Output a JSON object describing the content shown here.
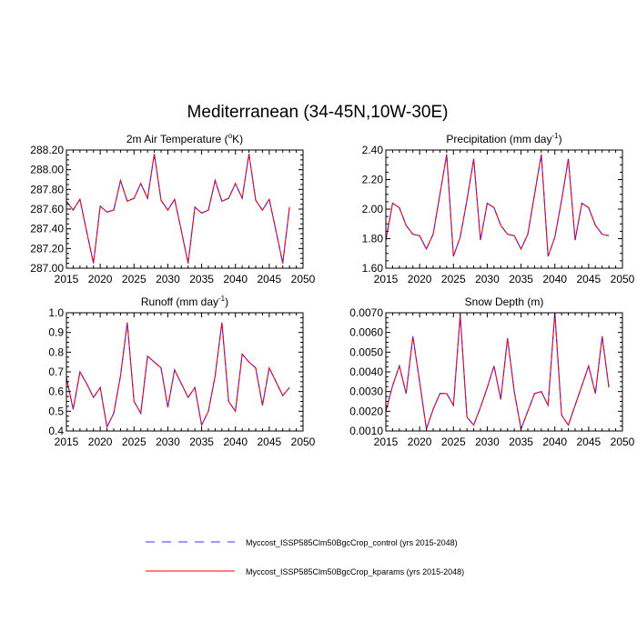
{
  "main_title": "Mediterranean (34-45N,10W-30E)",
  "colors": {
    "control": "#3333ff",
    "kparams": "#ff0000",
    "axis": "#000000"
  },
  "legend": [
    {
      "label": "Myccost_ISSP585Clm50BgcCrop_control (yrs 2015-2048)",
      "style": "dashed",
      "color": "#3333ff"
    },
    {
      "label": "Myccost_ISSP585Clm50BgcCrop_kparams (yrs 2015-2048)",
      "style": "solid",
      "color": "#ff0000"
    }
  ],
  "chart_data": [
    {
      "type": "line",
      "title": "2m Air Temperature (°K)",
      "title_base": "2m Air Temperature (",
      "title_sup": "o",
      "title_rest": "K)",
      "xlim": [
        2015,
        2050
      ],
      "xticks": [
        2015,
        2020,
        2025,
        2030,
        2035,
        2040,
        2045,
        2050
      ],
      "ylim": [
        287.0,
        288.2
      ],
      "yticks": [
        "287.00",
        "287.20",
        "287.40",
        "287.60",
        "287.80",
        "288.00",
        "288.20"
      ],
      "x": [
        2015,
        2016,
        2017,
        2018,
        2019,
        2020,
        2021,
        2022,
        2023,
        2024,
        2025,
        2026,
        2027,
        2028,
        2029,
        2030,
        2031,
        2032,
        2033,
        2034,
        2035,
        2036,
        2037,
        2038,
        2039,
        2040,
        2041,
        2042,
        2043,
        2044,
        2045,
        2046,
        2047,
        2048
      ],
      "series": [
        {
          "name": "Myccost_ISSP585Clm50BgcCrop_control",
          "values": [
            287.68,
            287.59,
            287.7,
            287.37,
            287.05,
            287.63,
            287.57,
            287.59,
            287.89,
            287.68,
            287.71,
            287.86,
            287.71,
            288.16,
            287.69,
            287.59,
            287.7,
            287.38,
            287.05,
            287.62,
            287.56,
            287.59,
            287.89,
            287.68,
            287.71,
            287.86,
            287.71,
            288.16,
            287.69,
            287.59,
            287.7,
            287.38,
            287.05,
            287.62
          ]
        },
        {
          "name": "Myccost_ISSP585Clm50BgcCrop_kparams",
          "values": [
            287.68,
            287.59,
            287.7,
            287.37,
            287.05,
            287.63,
            287.57,
            287.59,
            287.89,
            287.68,
            287.71,
            287.86,
            287.71,
            288.16,
            287.69,
            287.59,
            287.7,
            287.38,
            287.05,
            287.62,
            287.56,
            287.59,
            287.89,
            287.68,
            287.71,
            287.86,
            287.71,
            288.16,
            287.69,
            287.59,
            287.7,
            287.38,
            287.05,
            287.62
          ]
        }
      ]
    },
    {
      "type": "line",
      "title": "Precipitation (mm day-1)",
      "title_base": "Precipitation (mm day",
      "title_sup": "-1",
      "title_rest": ")",
      "xlim": [
        2015,
        2050
      ],
      "xticks": [
        2015,
        2020,
        2025,
        2030,
        2035,
        2040,
        2045,
        2050
      ],
      "ylim": [
        1.6,
        2.4
      ],
      "yticks": [
        "1.60",
        "1.80",
        "2.00",
        "2.20",
        "2.40"
      ],
      "x": [
        2015,
        2016,
        2017,
        2018,
        2019,
        2020,
        2021,
        2022,
        2023,
        2024,
        2025,
        2026,
        2027,
        2028,
        2029,
        2030,
        2031,
        2032,
        2033,
        2034,
        2035,
        2036,
        2037,
        2038,
        2039,
        2040,
        2041,
        2042,
        2043,
        2044,
        2045,
        2046,
        2047,
        2048
      ],
      "series": [
        {
          "name": "Myccost_ISSP585Clm50BgcCrop_control",
          "values": [
            1.79,
            2.04,
            2.01,
            1.89,
            1.83,
            1.82,
            1.73,
            1.83,
            2.1,
            2.37,
            1.68,
            1.81,
            2.06,
            2.34,
            1.79,
            2.04,
            2.01,
            1.89,
            1.83,
            1.82,
            1.73,
            1.83,
            2.1,
            2.37,
            1.68,
            1.81,
            2.06,
            2.34,
            1.79,
            2.04,
            2.01,
            1.89,
            1.83,
            1.82
          ]
        },
        {
          "name": "Myccost_ISSP585Clm50BgcCrop_kparams",
          "values": [
            1.79,
            2.04,
            2.01,
            1.89,
            1.83,
            1.82,
            1.73,
            1.83,
            2.1,
            2.37,
            1.68,
            1.81,
            2.06,
            2.34,
            1.79,
            2.04,
            2.01,
            1.89,
            1.83,
            1.82,
            1.73,
            1.83,
            2.1,
            2.37,
            1.68,
            1.81,
            2.06,
            2.34,
            1.79,
            2.04,
            2.01,
            1.89,
            1.83,
            1.82
          ]
        }
      ]
    },
    {
      "type": "line",
      "title": "Runoff (mm day-1)",
      "title_base": "Runoff (mm day",
      "title_sup": "-1",
      "title_rest": ")",
      "xlim": [
        2015,
        2050
      ],
      "xticks": [
        2015,
        2020,
        2025,
        2030,
        2035,
        2040,
        2045,
        2050
      ],
      "ylim": [
        0.4,
        1.0
      ],
      "yticks": [
        "0.4",
        "0.5",
        "0.6",
        "0.7",
        "0.8",
        "0.9",
        "1.0"
      ],
      "x": [
        2015,
        2016,
        2017,
        2018,
        2019,
        2020,
        2021,
        2022,
        2023,
        2024,
        2025,
        2026,
        2027,
        2028,
        2029,
        2030,
        2031,
        2032,
        2033,
        2034,
        2035,
        2036,
        2037,
        2038,
        2039,
        2040,
        2041,
        2042,
        2043,
        2044,
        2045,
        2046,
        2047,
        2048
      ],
      "series": [
        {
          "name": "Myccost_ISSP585Clm50BgcCrop_control",
          "values": [
            0.67,
            0.51,
            0.7,
            0.64,
            0.57,
            0.62,
            0.42,
            0.49,
            0.68,
            0.95,
            0.55,
            0.49,
            0.78,
            0.75,
            0.72,
            0.52,
            0.71,
            0.64,
            0.57,
            0.62,
            0.43,
            0.5,
            0.68,
            0.95,
            0.55,
            0.5,
            0.79,
            0.75,
            0.72,
            0.53,
            0.72,
            0.65,
            0.58,
            0.62
          ]
        },
        {
          "name": "Myccost_ISSP585Clm50BgcCrop_kparams",
          "values": [
            0.67,
            0.51,
            0.7,
            0.64,
            0.57,
            0.62,
            0.42,
            0.49,
            0.68,
            0.95,
            0.55,
            0.49,
            0.78,
            0.75,
            0.72,
            0.52,
            0.71,
            0.64,
            0.57,
            0.62,
            0.43,
            0.5,
            0.68,
            0.95,
            0.55,
            0.5,
            0.79,
            0.75,
            0.72,
            0.53,
            0.72,
            0.65,
            0.58,
            0.62
          ]
        }
      ]
    },
    {
      "type": "line",
      "title": "Snow Depth (m)",
      "title_base": "Snow Depth (m)",
      "title_sup": "",
      "title_rest": "",
      "xlim": [
        2015,
        2050
      ],
      "xticks": [
        2015,
        2020,
        2025,
        2030,
        2035,
        2040,
        2045,
        2050
      ],
      "ylim": [
        0.001,
        0.007
      ],
      "yticks": [
        "0.0010",
        "0.0020",
        "0.0030",
        "0.0040",
        "0.0050",
        "0.0060",
        "0.0070"
      ],
      "x": [
        2015,
        2016,
        2017,
        2018,
        2019,
        2020,
        2021,
        2022,
        2023,
        2024,
        2025,
        2026,
        2027,
        2028,
        2029,
        2030,
        2031,
        2032,
        2033,
        2034,
        2035,
        2036,
        2037,
        2038,
        2039,
        2040,
        2041,
        2042,
        2043,
        2044,
        2045,
        2046,
        2047,
        2048
      ],
      "series": [
        {
          "name": "Myccost_ISSP585Clm50BgcCrop_control",
          "values": [
            0.002,
            0.0033,
            0.0043,
            0.0029,
            0.0058,
            0.0035,
            0.0011,
            0.0021,
            0.0029,
            0.0029,
            0.0023,
            0.0069,
            0.0017,
            0.0013,
            0.0022,
            0.0032,
            0.0043,
            0.0026,
            0.0057,
            0.003,
            0.0011,
            0.002,
            0.0029,
            0.003,
            0.0023,
            0.007,
            0.0018,
            0.0013,
            0.0023,
            0.0033,
            0.0043,
            0.0029,
            0.0058,
            0.0032
          ]
        },
        {
          "name": "Myccost_ISSP585Clm50BgcCrop_kparams",
          "values": [
            0.002,
            0.0033,
            0.0043,
            0.0029,
            0.0058,
            0.0035,
            0.0011,
            0.0021,
            0.0029,
            0.0029,
            0.0023,
            0.0069,
            0.0017,
            0.0013,
            0.0022,
            0.0032,
            0.0043,
            0.0026,
            0.0057,
            0.003,
            0.0011,
            0.002,
            0.0029,
            0.003,
            0.0023,
            0.007,
            0.0018,
            0.0013,
            0.0023,
            0.0033,
            0.0043,
            0.0029,
            0.0058,
            0.0032
          ]
        }
      ]
    }
  ]
}
